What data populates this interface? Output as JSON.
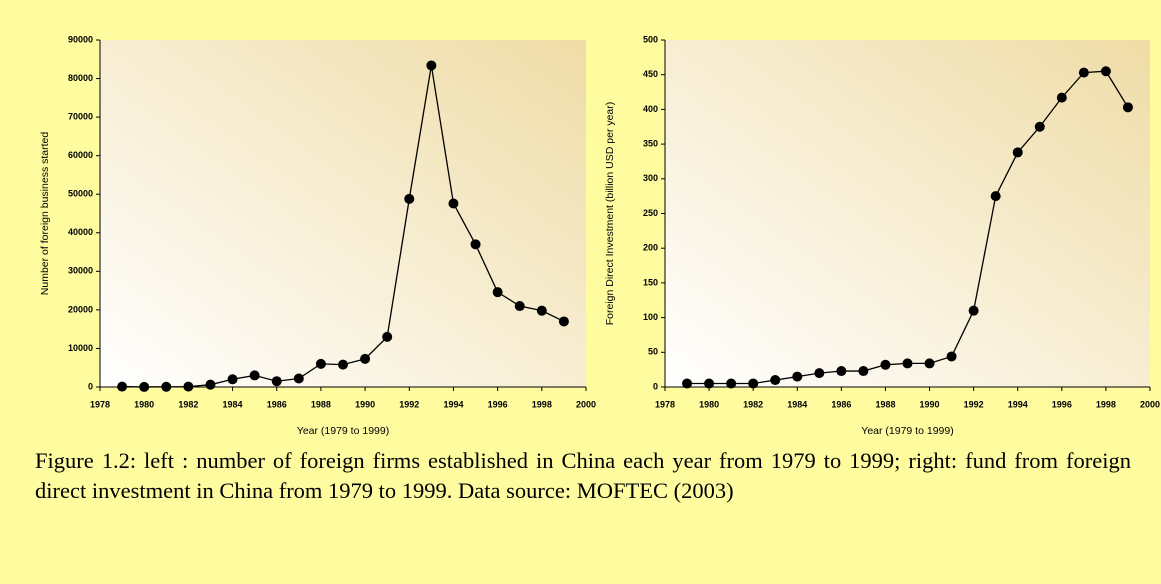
{
  "chart_data": [
    {
      "type": "line",
      "xlabel": "Year (1979 to 1999)",
      "ylabel": "Number of foreign business started",
      "x": [
        1979,
        1980,
        1981,
        1982,
        1983,
        1984,
        1985,
        1986,
        1987,
        1988,
        1989,
        1990,
        1991,
        1992,
        1993,
        1994,
        1995,
        1996,
        1997,
        1998,
        1999
      ],
      "series": [
        {
          "color": "#000000",
          "values": [
            100,
            20,
            50,
            100,
            600,
            2000,
            3000,
            1500,
            2200,
            6000,
            5800,
            7300,
            13000,
            48800,
            83400,
            47600,
            37000,
            24600,
            21000,
            19800,
            17000
          ]
        }
      ],
      "xlim": [
        1978,
        2000
      ],
      "xticks": [
        1978,
        1980,
        1982,
        1984,
        1986,
        1988,
        1990,
        1992,
        1994,
        1996,
        1998,
        2000
      ],
      "ylim": [
        0,
        90000
      ],
      "yticks": [
        0,
        10000,
        20000,
        30000,
        40000,
        50000,
        60000,
        70000,
        80000,
        90000
      ]
    },
    {
      "type": "line",
      "xlabel": "Year (1979 to 1999)",
      "ylabel": "Foreign Direct Investment (billion USD per year)",
      "x": [
        1979,
        1980,
        1981,
        1982,
        1983,
        1984,
        1985,
        1986,
        1987,
        1988,
        1989,
        1990,
        1991,
        1992,
        1993,
        1994,
        1995,
        1996,
        1997,
        1998,
        1999
      ],
      "series": [
        {
          "color": "#000000",
          "values": [
            5,
            5,
            5,
            5,
            10,
            15,
            20,
            23,
            23,
            32,
            34,
            34,
            44,
            110,
            275,
            338,
            375,
            417,
            453,
            455,
            403
          ]
        }
      ],
      "xlim": [
        1978,
        2000
      ],
      "xticks": [
        1978,
        1980,
        1982,
        1984,
        1986,
        1988,
        1990,
        1992,
        1994,
        1996,
        1998,
        2000
      ],
      "ylim": [
        0,
        500
      ],
      "yticks": [
        0,
        50,
        100,
        150,
        200,
        250,
        300,
        350,
        400,
        450,
        500
      ]
    }
  ],
  "caption": "Figure 1.2: left : number of foreign firms established in China each year from 1979 to 1999; right: fund from foreign direct investment in China from 1979 to 1999. Data source: MOFTEC (2003)"
}
